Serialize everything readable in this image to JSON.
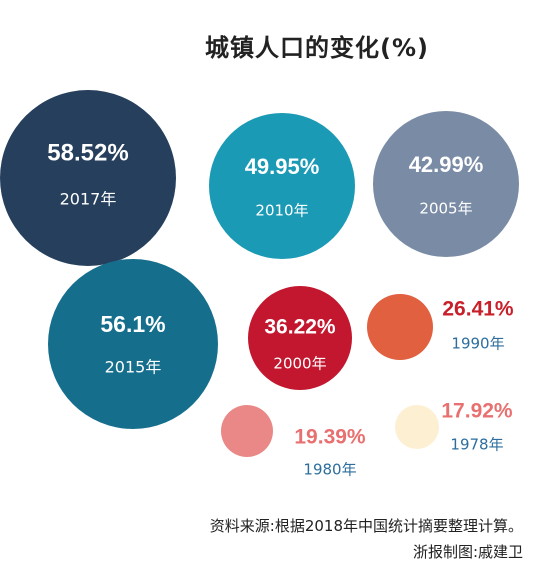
{
  "title": "城镇人口的变化(%)",
  "source": "资料来源:根据2018年中国统计摘要整理计算。",
  "credit": "浙报制图:戚建卫",
  "chart_data": {
    "type": "scatter",
    "title": "城镇人口的变化(%)",
    "unit": "%",
    "year_suffix": "年",
    "points": [
      {
        "year": "2017",
        "value": 58.52,
        "label": "58.52%",
        "color": "#253f5d",
        "text_color": "#ffffff"
      },
      {
        "year": "2010",
        "value": 49.95,
        "label": "49.95%",
        "color": "#1b9ab5",
        "text_color": "#ffffff"
      },
      {
        "year": "2005",
        "value": 42.99,
        "label": "42.99%",
        "color": "#7a8ba5",
        "text_color": "#ffffff"
      },
      {
        "year": "2015",
        "value": 56.1,
        "label": "56.1%",
        "color": "#156e8c",
        "text_color": "#ffffff"
      },
      {
        "year": "2000",
        "value": 36.22,
        "label": "36.22%",
        "color": "#c2172f",
        "text_color": "#ffffff"
      },
      {
        "year": "1990",
        "value": 26.41,
        "label": "26.41%",
        "color": "#e06040",
        "text_color": "#c8202a",
        "year_color": "#2d6e9e"
      },
      {
        "year": "1980",
        "value": 19.39,
        "label": "19.39%",
        "color": "#ea8888",
        "text_color": "#e87070",
        "year_color": "#2d6e9e"
      },
      {
        "year": "1978",
        "value": 17.92,
        "label": "17.92%",
        "color": "#fdf0d2",
        "text_color": "#e87070",
        "year_color": "#2d6e9e"
      }
    ]
  }
}
